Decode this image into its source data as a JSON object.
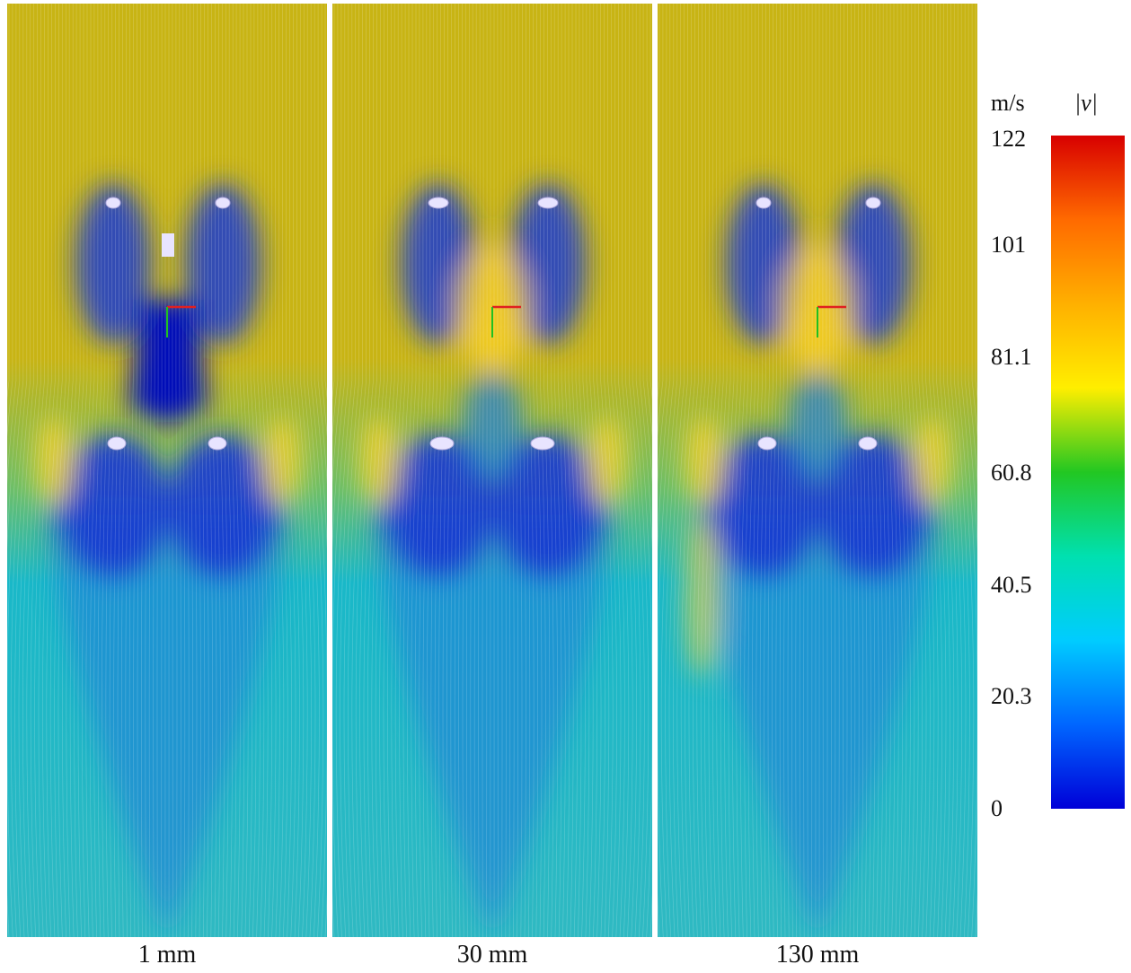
{
  "panels": [
    {
      "caption": "1 mm"
    },
    {
      "caption": "30 mm"
    },
    {
      "caption": "130 mm"
    }
  ],
  "colorbar": {
    "unit": "m/s",
    "quantity_symbol": "|v|",
    "tick_labels": [
      "122",
      "101",
      "81.1",
      "60.8",
      "40.5",
      "20.3",
      "0"
    ],
    "min": 0,
    "max": 122,
    "colormap": [
      "#0000d8",
      "#0066ff",
      "#00ccff",
      "#00e0b0",
      "#22c722",
      "#ffee00",
      "#ffb000",
      "#ff6a00",
      "#d80000"
    ]
  },
  "colors": {
    "slow": "#1438d0",
    "mid": "#19b8c8",
    "fast": "#c8b414",
    "highlight": "#ffd32a"
  }
}
